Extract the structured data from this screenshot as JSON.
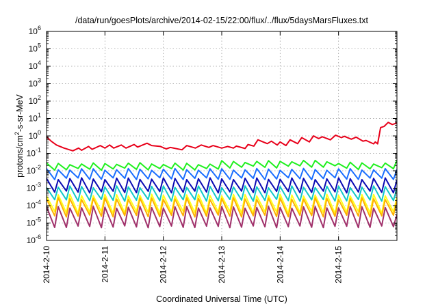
{
  "chart_data": {
    "type": "line",
    "title": "/data/run/goesPlots/archive/2014-02-15/22:00/flux/../flux/5daysMarsFluxes.txt",
    "xlabel": "Coordinated Universal Time (UTC)",
    "ylabel": "protons/cm²-s-sr-MeV",
    "ylabel_parts": {
      "pre": "protons/cm",
      "sup": "2",
      "post": "-s-sr-MeV"
    },
    "yscale": "log",
    "ylim_exp": [
      -6,
      6
    ],
    "ytick_labels": [
      {
        "base": "10",
        "exp": "-6"
      },
      {
        "base": "10",
        "exp": "-5"
      },
      {
        "base": "10",
        "exp": "-4"
      },
      {
        "base": "10",
        "exp": "-3"
      },
      {
        "base": "10",
        "exp": "-2"
      },
      {
        "base": "10",
        "exp": "-1"
      },
      {
        "base": "10",
        "exp": "0"
      },
      {
        "base": "10",
        "exp": "1"
      },
      {
        "base": "10",
        "exp": "2"
      },
      {
        "base": "10",
        "exp": "3"
      },
      {
        "base": "10",
        "exp": "4"
      },
      {
        "base": "10",
        "exp": "5"
      },
      {
        "base": "10",
        "exp": "6"
      }
    ],
    "x_start": "2014-02-10",
    "x_end": "2014-02-16",
    "xtick_labels": [
      "2014-2-10",
      "2014-2-11",
      "2014-2-12",
      "2014-2-13",
      "2014-2-14",
      "2014-2-15"
    ],
    "grid": true,
    "series_style": {
      "count": 8,
      "colors": [
        "#e8001a",
        "#1eef1e",
        "#1a6eff",
        "#0a0ab4",
        "#10c8c8",
        "#ffff1a",
        "#ffb000",
        "#a0306a"
      ]
    },
    "series": [
      {
        "color": "#e8001a",
        "x_days": [
          0,
          0.08,
          0.17,
          0.3,
          0.45,
          0.55,
          0.6,
          0.72,
          0.78,
          0.92,
          1.0,
          1.08,
          1.15,
          1.28,
          1.36,
          1.5,
          1.56,
          1.72,
          1.8,
          1.95,
          2.05,
          2.12,
          2.32,
          2.4,
          2.55,
          2.65,
          2.78,
          2.85,
          3.0,
          3.1,
          3.2,
          3.25,
          3.4,
          3.45,
          3.55,
          3.62,
          3.78,
          3.85,
          3.95,
          4.0,
          4.1,
          4.17,
          4.3,
          4.37,
          4.5,
          4.57,
          4.66,
          4.72,
          4.86,
          4.95,
          5.05,
          5.1,
          5.22,
          5.3,
          5.42,
          5.47,
          5.6,
          5.63,
          5.67,
          5.72,
          5.78,
          5.85,
          5.92,
          6.0
        ],
        "y": [
          0.9,
          0.5,
          0.3,
          0.2,
          0.14,
          0.2,
          0.15,
          0.25,
          0.17,
          0.28,
          0.2,
          0.3,
          0.2,
          0.3,
          0.2,
          0.32,
          0.23,
          0.38,
          0.28,
          0.25,
          0.18,
          0.22,
          0.16,
          0.28,
          0.2,
          0.3,
          0.22,
          0.28,
          0.2,
          0.25,
          0.2,
          0.26,
          0.19,
          0.32,
          0.26,
          0.6,
          0.36,
          0.5,
          0.3,
          0.45,
          0.28,
          0.6,
          0.36,
          0.8,
          0.45,
          1.0,
          0.7,
          0.9,
          0.6,
          1.1,
          0.8,
          0.95,
          0.65,
          0.85,
          0.5,
          0.55,
          0.35,
          0.45,
          0.35,
          3.0,
          3.5,
          6.0,
          4.5,
          5.5
        ]
      },
      {
        "color": "#1eef1e",
        "low": 0.012,
        "high": 0.025,
        "day_factor": [
          1.0,
          1.05,
          1.0,
          1.35,
          1.45,
          1.1
        ],
        "end": 0.04
      },
      {
        "color": "#1a6eff",
        "low": 0.0035,
        "high": 0.012,
        "day_factor": [
          1.0,
          1.0,
          1.0,
          1.0,
          1.0,
          1.0
        ],
        "end": 0.012
      },
      {
        "color": "#0a0ab4",
        "low": 0.0006,
        "high": 0.0035,
        "day_factor": [
          1.0,
          1.0,
          1.0,
          1.0,
          1.0,
          1.0
        ],
        "end": 0.003
      },
      {
        "color": "#10c8c8",
        "low": 0.0002,
        "high": 0.0012,
        "day_factor": [
          1.0,
          1.0,
          1.0,
          1.0,
          1.0,
          1.0
        ],
        "end": 0.001
      },
      {
        "color": "#ffff1a",
        "low": 4e-05,
        "high": 0.0004,
        "day_factor": [
          1.0,
          1.0,
          1.0,
          1.0,
          1.0,
          1.0
        ],
        "end": 0.0003
      },
      {
        "color": "#ffb000",
        "low": 2.5e-05,
        "high": 0.00025,
        "day_factor": [
          1.0,
          1.0,
          1.0,
          1.0,
          1.0,
          1.0
        ],
        "end": 0.0002
      },
      {
        "color": "#a0306a",
        "low": 6e-06,
        "high": 8e-05,
        "day_factor": [
          1.0,
          1.0,
          1.0,
          1.0,
          1.0,
          1.0
        ],
        "end": 3e-05
      }
    ]
  }
}
